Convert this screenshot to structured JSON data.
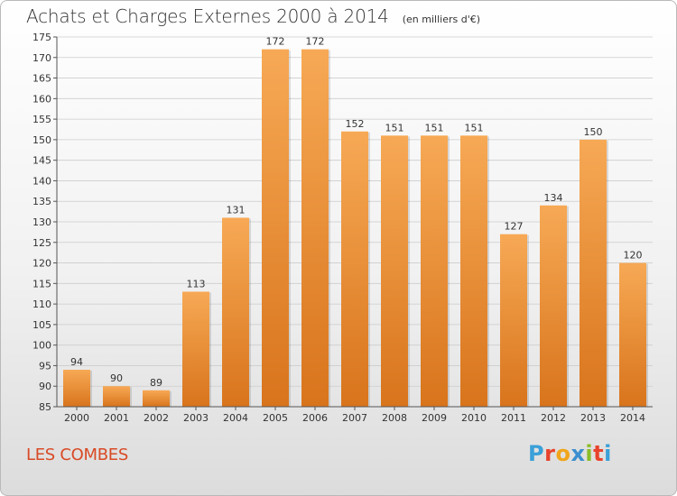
{
  "header": {
    "title": "Achats et Charges Externes 2000 à 2014",
    "subtitle": "(en milliers d'€)"
  },
  "footer": {
    "commune": "LES COMBES",
    "logo_letters": [
      {
        "ch": "P",
        "color": "#3aa0d8"
      },
      {
        "ch": "r",
        "color": "#e8432c"
      },
      {
        "ch": "o",
        "color": "#f0a51c"
      },
      {
        "ch": "x",
        "color": "#3b8fcf"
      },
      {
        "ch": "i",
        "color": "#8bbd2a"
      },
      {
        "ch": "t",
        "color": "#e8432c"
      },
      {
        "ch": "i",
        "color": "#3aa0d8"
      }
    ]
  },
  "colors": {
    "bar_light": "#f7a955",
    "bar_dark": "#d8741c",
    "grid": "#cccccc",
    "axis": "#555555"
  },
  "chart_data": {
    "type": "bar",
    "title": "Achats et Charges Externes 2000 à 2014",
    "subtitle": "(en milliers d'€)",
    "categories": [
      "2000",
      "2001",
      "2002",
      "2003",
      "2004",
      "2005",
      "2006",
      "2007",
      "2008",
      "2009",
      "2010",
      "2011",
      "2012",
      "2013",
      "2014"
    ],
    "values": [
      94,
      90,
      89,
      113,
      131,
      172,
      172,
      152,
      151,
      151,
      151,
      127,
      134,
      150,
      120
    ],
    "ylim": [
      85,
      175
    ],
    "yticks": [
      85,
      90,
      95,
      100,
      105,
      110,
      115,
      120,
      125,
      130,
      135,
      140,
      145,
      150,
      155,
      160,
      165,
      170,
      175
    ],
    "grid": true,
    "data_labels": true
  }
}
